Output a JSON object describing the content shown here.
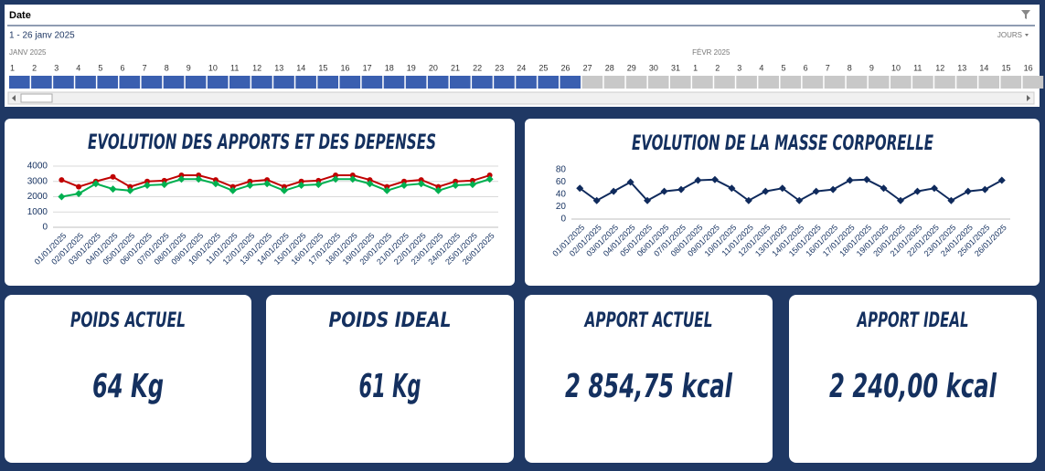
{
  "timeline": {
    "header": "Date",
    "range": "1 - 26 janv 2025",
    "level": "JOURS",
    "months": [
      {
        "label": "JANV 2025",
        "start": 0
      },
      {
        "label": "FÉVR 2025",
        "start": 31
      }
    ],
    "days": [
      1,
      2,
      3,
      4,
      5,
      6,
      7,
      8,
      9,
      10,
      11,
      12,
      13,
      14,
      15,
      16,
      17,
      18,
      19,
      20,
      21,
      22,
      23,
      24,
      25,
      26,
      27,
      28,
      29,
      30,
      31,
      1,
      2,
      3,
      4,
      5,
      6,
      7,
      8,
      9,
      10,
      11,
      12,
      13,
      14,
      15,
      16
    ],
    "selected_count": 26,
    "selected_color": "#3a5fb0"
  },
  "chart_data": [
    {
      "type": "line",
      "title": "EVOLUTION DES APPORTS ET DES DEPENSES",
      "categories": [
        "01/01/2025",
        "02/01/2025",
        "03/01/2025",
        "04/01/2025",
        "05/01/2025",
        "06/01/2025",
        "07/01/2025",
        "08/01/2025",
        "09/01/2025",
        "10/01/2025",
        "11/01/2025",
        "12/01/2025",
        "13/01/2025",
        "14/01/2025",
        "15/01/2025",
        "16/01/2025",
        "17/01/2025",
        "18/01/2025",
        "19/01/2025",
        "20/01/2025",
        "21/01/2025",
        "22/01/2025",
        "23/01/2025",
        "24/01/2025",
        "25/01/2025",
        "26/01/2025"
      ],
      "series": [
        {
          "color": "#c00000",
          "marker": "circle",
          "values": [
            3100,
            2650,
            3000,
            3300,
            2650,
            3000,
            3050,
            3400,
            3400,
            3100,
            2650,
            3000,
            3100,
            2650,
            3000,
            3050,
            3400,
            3400,
            3100,
            2650,
            3000,
            3100,
            2650,
            3000,
            3050,
            3400
          ]
        },
        {
          "color": "#00b050",
          "marker": "diamond",
          "values": [
            2000,
            2200,
            2850,
            2500,
            2400,
            2750,
            2800,
            3150,
            3150,
            2850,
            2400,
            2750,
            2850,
            2400,
            2750,
            2800,
            3150,
            3150,
            2850,
            2400,
            2750,
            2850,
            2400,
            2750,
            2800,
            3150
          ]
        }
      ],
      "ylim": [
        0,
        4000
      ],
      "yticks": [
        0,
        1000,
        2000,
        3000,
        4000
      ],
      "grid": true
    },
    {
      "type": "line",
      "title": "EVOLUTION DE LA MASSE CORPORELLE",
      "categories": [
        "01/01/2025",
        "02/01/2025",
        "03/01/2025",
        "04/01/2025",
        "05/01/2025",
        "06/01/2025",
        "07/01/2025",
        "08/01/2025",
        "09/01/2025",
        "10/01/2025",
        "11/01/2025",
        "12/01/2025",
        "13/01/2025",
        "14/01/2025",
        "15/01/2025",
        "16/01/2025",
        "17/01/2025",
        "18/01/2025",
        "19/01/2025",
        "20/01/2025",
        "21/01/2025",
        "22/01/2025",
        "23/01/2025",
        "24/01/2025",
        "25/01/2025",
        "26/01/2025"
      ],
      "series": [
        {
          "color": "#0f2a5c",
          "marker": "diamond",
          "values": [
            50,
            30,
            45,
            60,
            30,
            45,
            48,
            63,
            64,
            50,
            30,
            45,
            50,
            30,
            45,
            48,
            63,
            64,
            50,
            30,
            45,
            50,
            30,
            45,
            48,
            63
          ]
        }
      ],
      "ylim": [
        0,
        80
      ],
      "yticks": [
        0,
        20,
        40,
        60,
        80
      ],
      "grid": false
    }
  ],
  "cards": [
    {
      "title": "POIDS ACTUEL",
      "value": "64 Kg"
    },
    {
      "title": "POIDS IDEAL",
      "value": "61 Kg"
    },
    {
      "title": "APPORT ACTUEL",
      "value": "2 854,75 kcal"
    },
    {
      "title": "APPORT IDEAL",
      "value": "2 240,00 kcal"
    }
  ]
}
